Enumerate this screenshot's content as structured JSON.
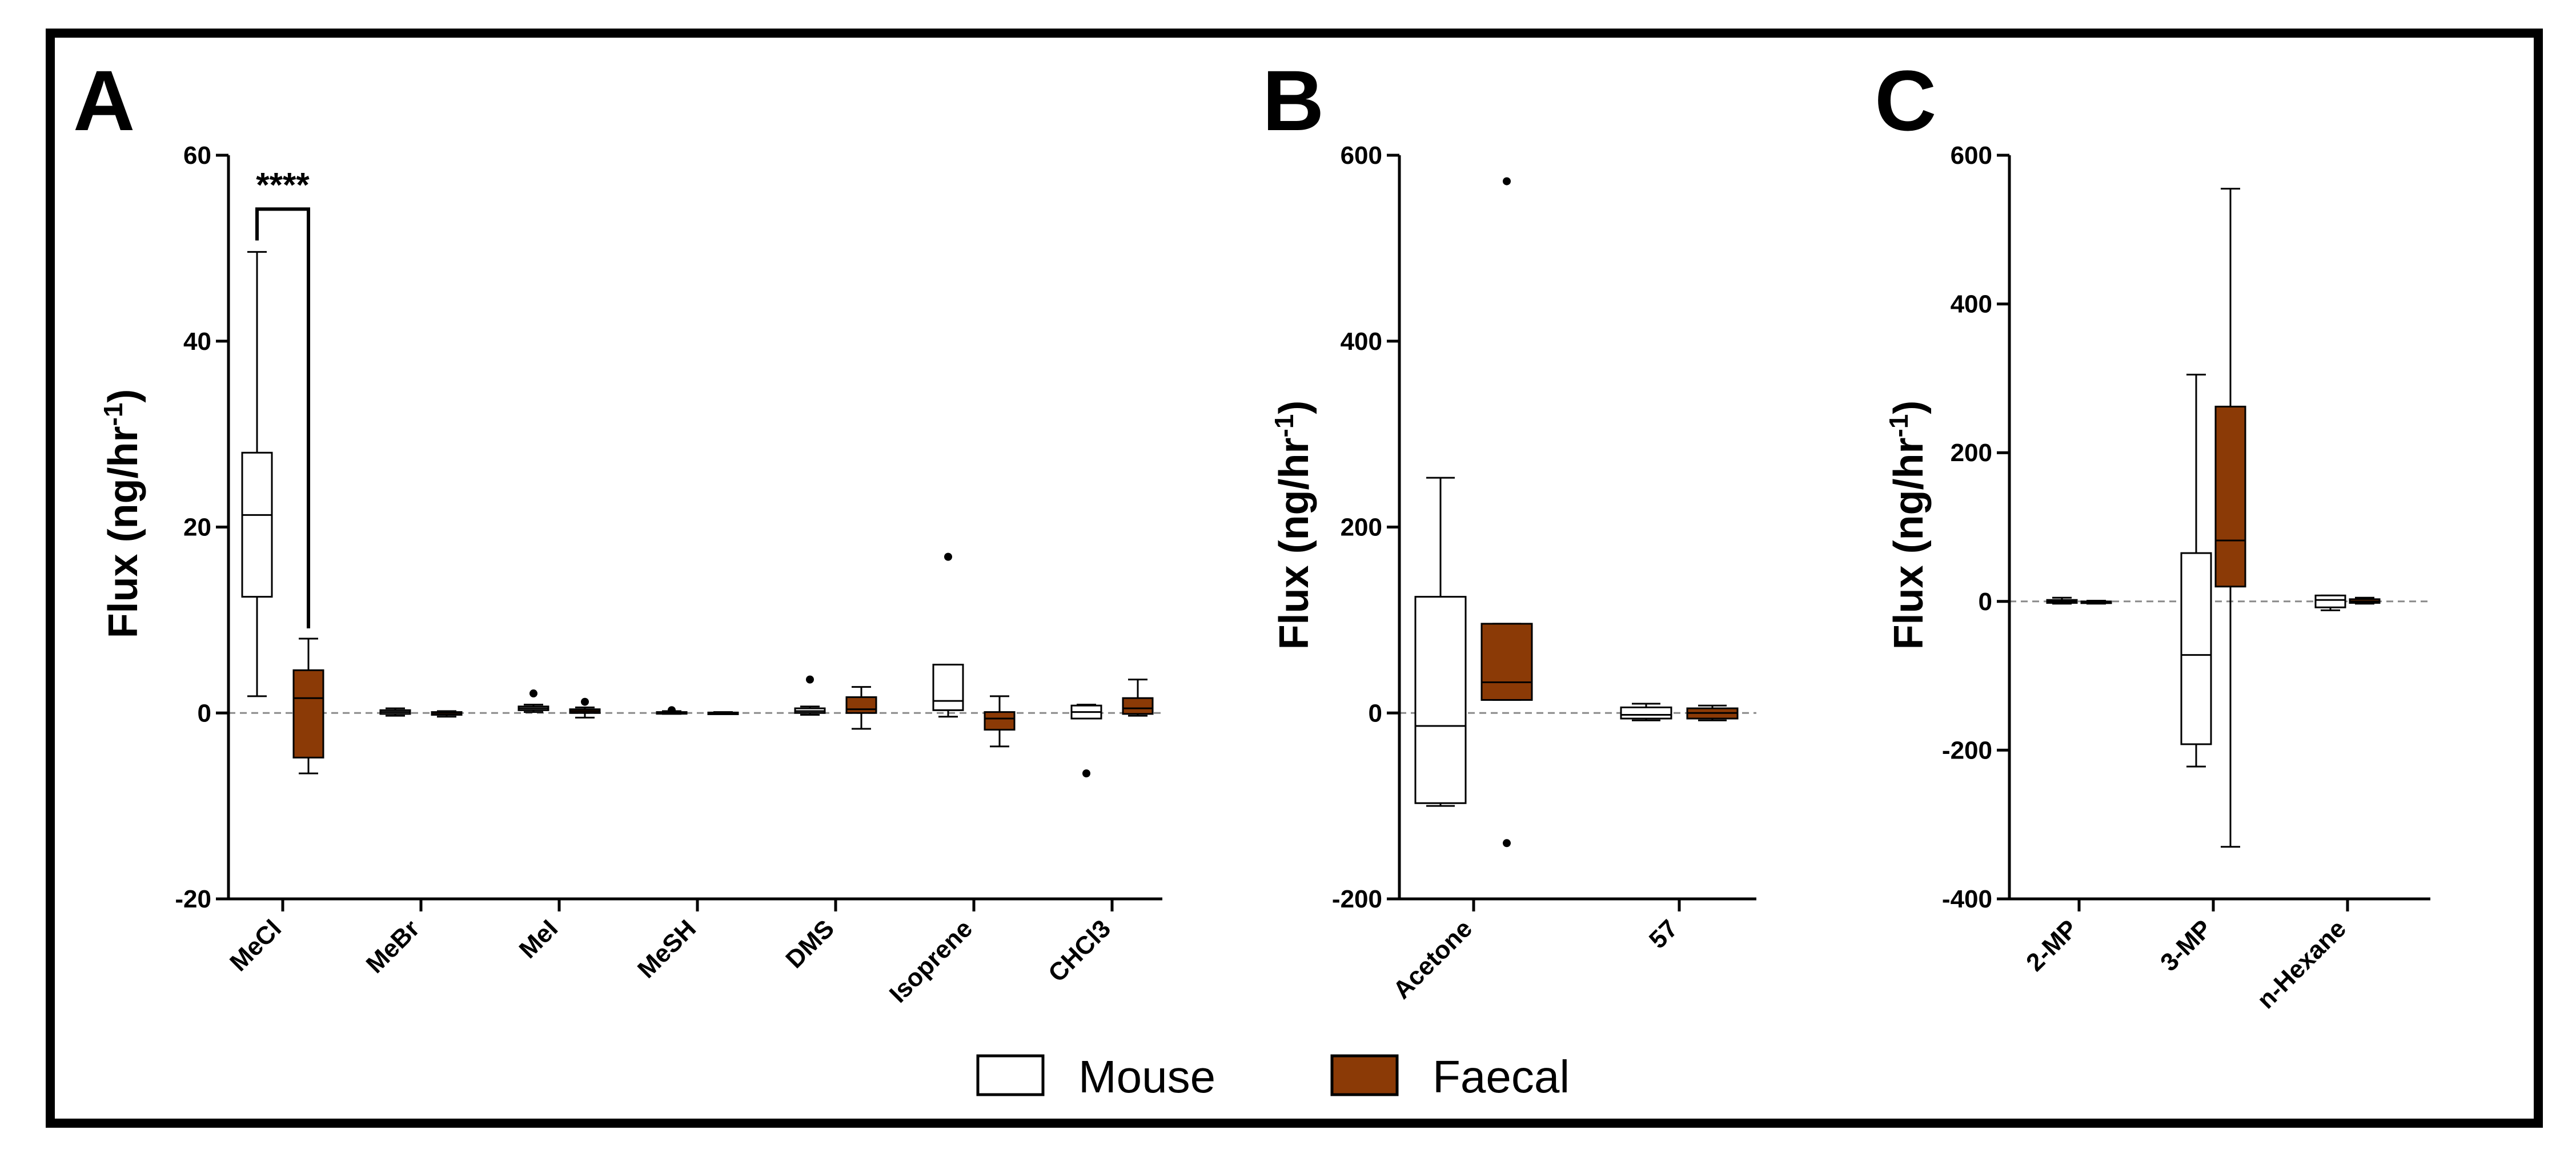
{
  "colors": {
    "mouse_fill": "#ffffff",
    "faecal_fill": "#8b3a06",
    "stroke": "#000000",
    "zero_line": "#8a8a8a",
    "border": "#000000"
  },
  "legend": [
    {
      "label": "Mouse",
      "fill": "#ffffff"
    },
    {
      "label": "Faecal",
      "fill": "#8b3a06"
    }
  ],
  "chart_data": [
    {
      "panel": "A",
      "type": "box",
      "ylabel": "Flux (ng/hr",
      "ylabel_sup": "-1",
      "ylabel_close": ")",
      "ylim": [
        -20,
        60
      ],
      "yticks": [
        -20,
        0,
        20,
        40,
        60
      ],
      "categories": [
        "MeCl",
        "MeBr",
        "MeI",
        "MeSH",
        "DMS",
        "Isoprene",
        "CHCl3"
      ],
      "series": [
        {
          "name": "Mouse",
          "boxes": [
            {
              "min": 1.8,
              "q1": 12.5,
              "median": 21.3,
              "q3": 28.0,
              "max": 49.6,
              "outliers": []
            },
            {
              "min": -0.3,
              "q1": -0.1,
              "median": 0.1,
              "q3": 0.3,
              "max": 0.5,
              "outliers": []
            },
            {
              "min": 0.1,
              "q1": 0.3,
              "median": 0.5,
              "q3": 0.7,
              "max": 0.9,
              "outliers": [
                2.1
              ]
            },
            {
              "min": -0.1,
              "q1": 0.0,
              "median": 0.05,
              "q3": 0.1,
              "max": 0.2,
              "outliers": [
                0.3
              ]
            },
            {
              "min": -0.2,
              "q1": 0.0,
              "median": 0.2,
              "q3": 0.5,
              "max": 0.7,
              "outliers": [
                3.6
              ]
            },
            {
              "min": -0.4,
              "q1": 0.3,
              "median": 1.3,
              "q3": 5.2,
              "max": 5.2,
              "outliers": [
                16.8
              ]
            },
            {
              "min": -0.6,
              "q1": -0.6,
              "median": 0.1,
              "q3": 0.8,
              "max": 0.9,
              "outliers": [
                -6.5
              ]
            }
          ]
        },
        {
          "name": "Faecal",
          "boxes": [
            {
              "min": -6.5,
              "q1": -4.8,
              "median": 1.6,
              "q3": 4.6,
              "max": 8.0,
              "outliers": []
            },
            {
              "min": -0.4,
              "q1": -0.2,
              "median": 0.0,
              "q3": 0.1,
              "max": 0.2,
              "outliers": []
            },
            {
              "min": -0.5,
              "q1": 0.0,
              "median": 0.2,
              "q3": 0.4,
              "max": 0.6,
              "outliers": [
                1.2
              ]
            },
            {
              "min": -0.1,
              "q1": -0.05,
              "median": 0.0,
              "q3": 0.05,
              "max": 0.1,
              "outliers": []
            },
            {
              "min": -1.7,
              "q1": 0.0,
              "median": 0.4,
              "q3": 1.7,
              "max": 2.8,
              "outliers": []
            },
            {
              "min": -3.6,
              "q1": -1.8,
              "median": -0.6,
              "q3": 0.1,
              "max": 1.8,
              "outliers": []
            },
            {
              "min": -0.3,
              "q1": -0.1,
              "median": 0.5,
              "q3": 1.6,
              "max": 3.6,
              "outliers": []
            }
          ]
        }
      ],
      "significance": {
        "label": "****",
        "category": "MeCl"
      }
    },
    {
      "panel": "B",
      "type": "box",
      "ylabel": "Flux (ng/hr",
      "ylabel_sup": "-1",
      "ylabel_close": ")",
      "ylim": [
        -200,
        600
      ],
      "yticks": [
        -200,
        0,
        200,
        400,
        600
      ],
      "categories": [
        "Acetone",
        "57"
      ],
      "series": [
        {
          "name": "Mouse",
          "boxes": [
            {
              "min": -100,
              "q1": -97,
              "median": -14,
              "q3": 125,
              "max": 253,
              "outliers": []
            },
            {
              "min": -8,
              "q1": -6,
              "median": -2,
              "q3": 6,
              "max": 10,
              "outliers": []
            }
          ]
        },
        {
          "name": "Faecal",
          "boxes": [
            {
              "min": 14,
              "q1": 14,
              "median": 33,
              "q3": 96,
              "max": 96,
              "outliers": [
                572,
                -140
              ]
            },
            {
              "min": -8,
              "q1": -6,
              "median": 0,
              "q3": 5,
              "max": 8,
              "outliers": []
            }
          ]
        }
      ]
    },
    {
      "panel": "C",
      "type": "box",
      "ylabel": "Flux (ng/hr",
      "ylabel_sup": "-1",
      "ylabel_close": ")",
      "ylim": [
        -400,
        600
      ],
      "yticks": [
        -400,
        -200,
        0,
        200,
        400,
        600
      ],
      "categories": [
        "2-MP",
        "3-MP",
        "n-Hexane"
      ],
      "series": [
        {
          "name": "Mouse",
          "boxes": [
            {
              "min": -3,
              "q1": -2,
              "median": 0,
              "q3": 2,
              "max": 5,
              "outliers": []
            },
            {
              "min": -222,
              "q1": -192,
              "median": -72,
              "q3": 65,
              "max": 305,
              "outliers": []
            },
            {
              "min": -12,
              "q1": -8,
              "median": 2,
              "q3": 8,
              "max": 8,
              "outliers": []
            }
          ]
        },
        {
          "name": "Faecal",
          "boxes": [
            {
              "min": -3,
              "q1": -2,
              "median": -1,
              "q3": 0,
              "max": 1,
              "outliers": []
            },
            {
              "min": -330,
              "q1": 20,
              "median": 82,
              "q3": 262,
              "max": 555,
              "outliers": []
            },
            {
              "min": -3,
              "q1": -2,
              "median": 0,
              "q3": 3,
              "max": 5,
              "outliers": []
            }
          ]
        }
      ]
    }
  ]
}
